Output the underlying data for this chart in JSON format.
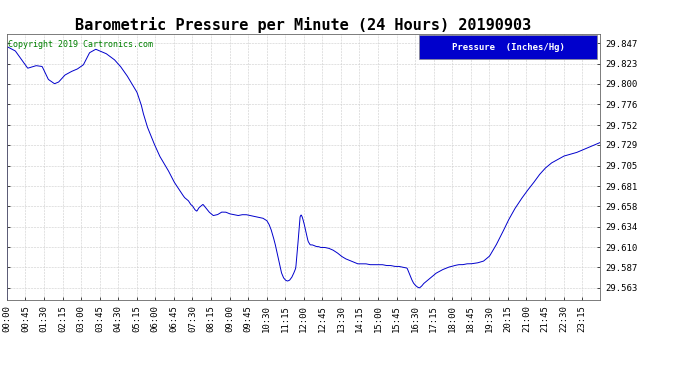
{
  "title": "Barometric Pressure per Minute (24 Hours) 20190903",
  "copyright_text": "Copyright 2019 Cartronics.com",
  "legend_text": "Pressure  (Inches/Hg)",
  "legend_bg": "#0000cc",
  "legend_fg": "#ffffff",
  "line_color": "#0000cc",
  "bg_color": "#ffffff",
  "grid_color": "#cccccc",
  "yticks": [
    29.563,
    29.587,
    29.61,
    29.634,
    29.658,
    29.681,
    29.705,
    29.729,
    29.752,
    29.776,
    29.8,
    29.823,
    29.847
  ],
  "ylim": [
    29.549,
    29.858
  ],
  "xtick_labels": [
    "00:00",
    "00:45",
    "01:30",
    "02:15",
    "03:00",
    "03:45",
    "04:30",
    "05:15",
    "06:00",
    "06:45",
    "07:30",
    "08:15",
    "09:00",
    "09:45",
    "10:30",
    "11:15",
    "12:00",
    "12:45",
    "13:30",
    "14:15",
    "15:00",
    "15:45",
    "16:30",
    "17:15",
    "18:00",
    "18:45",
    "19:30",
    "20:15",
    "21:00",
    "21:45",
    "22:30",
    "23:15"
  ],
  "title_fontsize": 11,
  "tick_fontsize": 6.5,
  "copyright_fontsize": 6,
  "keypoints": [
    [
      0,
      29.843
    ],
    [
      20,
      29.838
    ],
    [
      35,
      29.828
    ],
    [
      50,
      29.818
    ],
    [
      70,
      29.821
    ],
    [
      85,
      29.82
    ],
    [
      100,
      29.805
    ],
    [
      115,
      29.8
    ],
    [
      125,
      29.802
    ],
    [
      140,
      29.81
    ],
    [
      155,
      29.814
    ],
    [
      170,
      29.817
    ],
    [
      185,
      29.822
    ],
    [
      200,
      29.836
    ],
    [
      215,
      29.84
    ],
    [
      225,
      29.838
    ],
    [
      240,
      29.835
    ],
    [
      260,
      29.828
    ],
    [
      275,
      29.82
    ],
    [
      290,
      29.81
    ],
    [
      305,
      29.798
    ],
    [
      315,
      29.79
    ],
    [
      320,
      29.783
    ],
    [
      325,
      29.776
    ],
    [
      330,
      29.766
    ],
    [
      340,
      29.75
    ],
    [
      355,
      29.732
    ],
    [
      370,
      29.716
    ],
    [
      390,
      29.7
    ],
    [
      405,
      29.686
    ],
    [
      420,
      29.675
    ],
    [
      430,
      29.668
    ],
    [
      435,
      29.666
    ],
    [
      440,
      29.664
    ],
    [
      445,
      29.66
    ],
    [
      450,
      29.658
    ],
    [
      455,
      29.654
    ],
    [
      460,
      29.652
    ],
    [
      465,
      29.656
    ],
    [
      470,
      29.658
    ],
    [
      475,
      29.66
    ],
    [
      480,
      29.657
    ],
    [
      490,
      29.651
    ],
    [
      500,
      29.647
    ],
    [
      510,
      29.648
    ],
    [
      520,
      29.651
    ],
    [
      530,
      29.651
    ],
    [
      540,
      29.649
    ],
    [
      550,
      29.648
    ],
    [
      560,
      29.647
    ],
    [
      570,
      29.648
    ],
    [
      580,
      29.648
    ],
    [
      590,
      29.647
    ],
    [
      600,
      29.646
    ],
    [
      610,
      29.645
    ],
    [
      620,
      29.644
    ],
    [
      630,
      29.641
    ],
    [
      635,
      29.637
    ],
    [
      640,
      29.631
    ],
    [
      645,
      29.623
    ],
    [
      650,
      29.614
    ],
    [
      655,
      29.603
    ],
    [
      660,
      29.592
    ],
    [
      665,
      29.581
    ],
    [
      670,
      29.575
    ],
    [
      675,
      29.572
    ],
    [
      680,
      29.571
    ],
    [
      685,
      29.572
    ],
    [
      690,
      29.575
    ],
    [
      695,
      29.58
    ],
    [
      700,
      29.586
    ],
    [
      703,
      29.602
    ],
    [
      706,
      29.619
    ],
    [
      710,
      29.645
    ],
    [
      713,
      29.648
    ],
    [
      716,
      29.645
    ],
    [
      720,
      29.638
    ],
    [
      725,
      29.627
    ],
    [
      730,
      29.617
    ],
    [
      735,
      29.613
    ],
    [
      740,
      29.613
    ],
    [
      745,
      29.612
    ],
    [
      750,
      29.611
    ],
    [
      755,
      29.611
    ],
    [
      760,
      29.61
    ],
    [
      770,
      29.61
    ],
    [
      780,
      29.609
    ],
    [
      790,
      29.607
    ],
    [
      800,
      29.604
    ],
    [
      810,
      29.6
    ],
    [
      820,
      29.597
    ],
    [
      830,
      29.595
    ],
    [
      840,
      29.593
    ],
    [
      850,
      29.591
    ],
    [
      860,
      29.591
    ],
    [
      870,
      29.591
    ],
    [
      880,
      29.59
    ],
    [
      890,
      29.59
    ],
    [
      900,
      29.59
    ],
    [
      910,
      29.59
    ],
    [
      920,
      29.589
    ],
    [
      930,
      29.589
    ],
    [
      940,
      29.588
    ],
    [
      950,
      29.588
    ],
    [
      960,
      29.587
    ],
    [
      970,
      29.586
    ],
    [
      975,
      29.58
    ],
    [
      980,
      29.574
    ],
    [
      985,
      29.569
    ],
    [
      990,
      29.566
    ],
    [
      995,
      29.564
    ],
    [
      1000,
      29.563
    ],
    [
      1005,
      29.565
    ],
    [
      1010,
      29.568
    ],
    [
      1020,
      29.572
    ],
    [
      1030,
      29.576
    ],
    [
      1040,
      29.58
    ],
    [
      1055,
      29.584
    ],
    [
      1070,
      29.587
    ],
    [
      1085,
      29.589
    ],
    [
      1095,
      29.59
    ],
    [
      1105,
      29.59
    ],
    [
      1115,
      29.591
    ],
    [
      1125,
      29.591
    ],
    [
      1140,
      29.592
    ],
    [
      1155,
      29.594
    ],
    [
      1170,
      29.6
    ],
    [
      1185,
      29.612
    ],
    [
      1200,
      29.626
    ],
    [
      1215,
      29.641
    ],
    [
      1230,
      29.654
    ],
    [
      1245,
      29.665
    ],
    [
      1260,
      29.675
    ],
    [
      1275,
      29.684
    ],
    [
      1290,
      29.694
    ],
    [
      1305,
      29.702
    ],
    [
      1320,
      29.708
    ],
    [
      1335,
      29.712
    ],
    [
      1350,
      29.716
    ],
    [
      1365,
      29.718
    ],
    [
      1380,
      29.72
    ],
    [
      1395,
      29.723
    ],
    [
      1410,
      29.726
    ],
    [
      1425,
      29.729
    ],
    [
      1439,
      29.732
    ]
  ]
}
